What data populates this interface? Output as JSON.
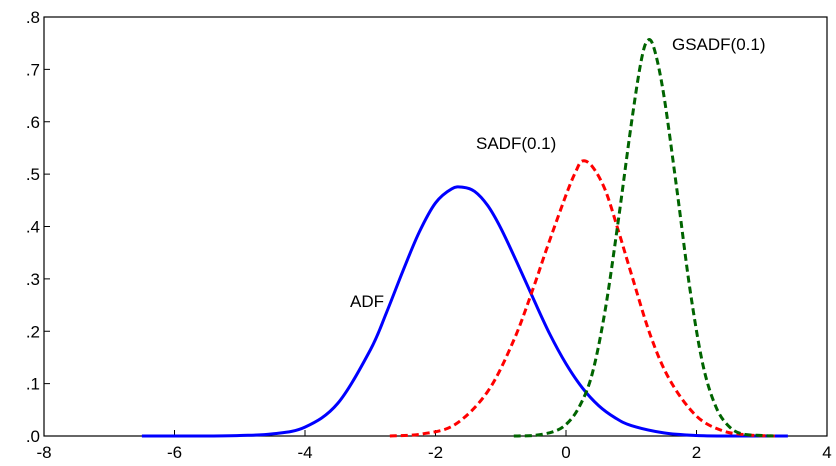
{
  "chart_data": {
    "type": "line",
    "xlim": [
      -8,
      4
    ],
    "ylim": [
      0,
      0.8
    ],
    "x_ticks": [
      -8,
      -6,
      -4,
      -2,
      0,
      2,
      4
    ],
    "x_tick_labels": [
      "-8",
      "-6",
      "-4",
      "-2",
      "0",
      "2",
      "4"
    ],
    "y_ticks": [
      0,
      0.1,
      0.2,
      0.3,
      0.4,
      0.5,
      0.6,
      0.7,
      0.8
    ],
    "y_tick_labels": [
      ".0",
      ".1",
      ".2",
      ".3",
      ".4",
      ".5",
      ".6",
      ".7",
      ".8"
    ],
    "grid": false,
    "legend": "none",
    "series": [
      {
        "name": "ADF",
        "label": "ADF",
        "color": "#0000ff",
        "dash": "solid",
        "x": [
          -6.5,
          -6.0,
          -5.5,
          -5.0,
          -4.5,
          -4.0,
          -3.5,
          -3.0,
          -2.75,
          -2.5,
          -2.25,
          -2.0,
          -1.75,
          -1.58,
          -1.4,
          -1.2,
          -1.0,
          -0.75,
          -0.5,
          -0.25,
          0.0,
          0.25,
          0.5,
          0.75,
          1.0,
          1.5,
          2.0,
          2.5,
          3.0,
          3.4
        ],
        "y": [
          0.0,
          0.0,
          0.0,
          0.001,
          0.004,
          0.017,
          0.062,
          0.164,
          0.236,
          0.315,
          0.389,
          0.445,
          0.472,
          0.475,
          0.467,
          0.44,
          0.397,
          0.331,
          0.262,
          0.195,
          0.138,
          0.092,
          0.058,
          0.035,
          0.02,
          0.006,
          0.001,
          0.0,
          0.0,
          0.0
        ]
      },
      {
        "name": "SADF(0.1)",
        "label": "SADF(0.1)",
        "color": "#ff0000",
        "dash": "dashed",
        "x": [
          -2.7,
          -2.2,
          -1.7,
          -1.2,
          -0.8,
          -0.5,
          -0.3,
          0.0,
          0.15,
          0.25,
          0.4,
          0.6,
          0.8,
          1.0,
          1.3,
          1.6,
          2.0,
          2.4,
          2.8,
          3.2
        ],
        "y": [
          0.0,
          0.004,
          0.022,
          0.085,
          0.183,
          0.283,
          0.356,
          0.46,
          0.505,
          0.525,
          0.515,
          0.47,
          0.393,
          0.31,
          0.19,
          0.105,
          0.038,
          0.01,
          0.002,
          0.0
        ],
        "peak_label_offset": null
      },
      {
        "name": "GSADF(0.1)",
        "label": "GSADF(0.1)",
        "color": "#006400",
        "dash": "dashed",
        "x": [
          -0.8,
          -0.5,
          -0.2,
          0.0,
          0.2,
          0.4,
          0.6,
          0.8,
          1.0,
          1.15,
          1.25,
          1.35,
          1.5,
          1.7,
          1.9,
          2.1,
          2.3,
          2.5,
          2.7,
          3.0,
          3.2
        ],
        "y": [
          0.0,
          0.001,
          0.008,
          0.022,
          0.055,
          0.118,
          0.24,
          0.41,
          0.595,
          0.715,
          0.755,
          0.74,
          0.65,
          0.47,
          0.28,
          0.135,
          0.055,
          0.018,
          0.004,
          0.001,
          0.0
        ]
      }
    ]
  }
}
